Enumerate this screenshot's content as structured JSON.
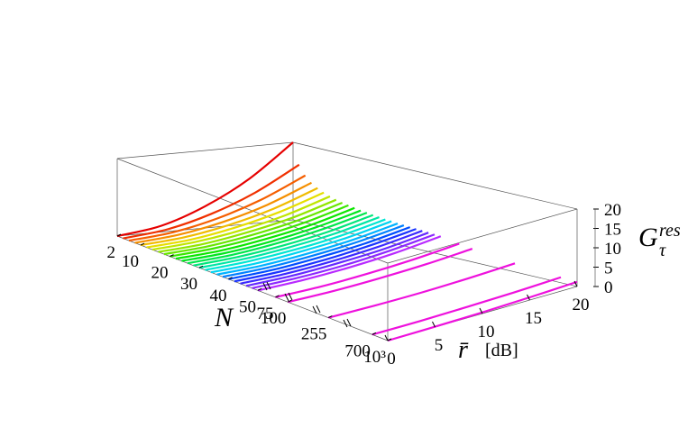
{
  "chart_data": {
    "type": "line3d",
    "x_label": "N",
    "y_label": "r̄",
    "y_unit": "[dB]",
    "z_label": "G",
    "z_sub": "τ",
    "z_sup": "res",
    "nlim": [
      2,
      1000
    ],
    "n_break": 50,
    "nticks": [
      2,
      10,
      20,
      30,
      40,
      50,
      75,
      100,
      255,
      700,
      {
        "value": 1000,
        "label": "10³"
      }
    ],
    "x": [
      0,
      5,
      10,
      15,
      20
    ],
    "xlim": [
      0,
      20
    ],
    "xticks": [
      0,
      5,
      10,
      15,
      20
    ],
    "zlim": [
      0,
      20
    ],
    "zticks": [
      0,
      5,
      10,
      15,
      20
    ],
    "series": [
      {
        "N": 2,
        "color": "hsl(0,100%,45%)",
        "values": [
          0,
          1.6,
          5.6,
          11.6,
          20
        ]
      },
      {
        "N": 4,
        "color": "hsl(12,100%,47%)",
        "values": [
          0,
          1.2,
          4.1,
          8.5,
          14.6
        ]
      },
      {
        "N": 6,
        "color": "hsl(23,100%,48%)",
        "values": [
          0,
          1.0,
          3.4,
          7.1,
          12.2
        ]
      },
      {
        "N": 8,
        "color": "hsl(35,100%,48%)",
        "values": [
          0,
          0.9,
          3.0,
          6.2,
          10.7
        ]
      },
      {
        "N": 10,
        "color": "hsl(47,100%,47%)",
        "values": [
          0,
          0.8,
          2.7,
          5.6,
          9.7
        ]
      },
      {
        "N": 12,
        "color": "hsl(58,100%,45%)",
        "values": [
          0,
          0.7,
          2.5,
          5.2,
          8.9
        ]
      },
      {
        "N": 14,
        "color": "hsl(70,100%,45%)",
        "values": [
          0,
          0.7,
          2.3,
          4.8,
          8.3
        ]
      },
      {
        "N": 16,
        "color": "hsl(82,100%,45%)",
        "values": [
          0,
          0.6,
          2.2,
          4.5,
          7.8
        ]
      },
      {
        "N": 18,
        "color": "hsl(93,100%,45%)",
        "values": [
          0,
          0.6,
          2.1,
          4.3,
          7.4
        ]
      },
      {
        "N": 20,
        "color": "hsl(105,100%,45%)",
        "values": [
          0,
          0.6,
          2.0,
          4.1,
          7.1
        ]
      },
      {
        "N": 22,
        "color": "hsl(117,100%,45%)",
        "values": [
          0,
          0.5,
          1.9,
          3.9,
          6.8
        ]
      },
      {
        "N": 24,
        "color": "hsl(128,100%,45%)",
        "values": [
          0,
          0.5,
          1.8,
          3.8,
          6.5
        ]
      },
      {
        "N": 26,
        "color": "hsl(140,100%,45%)",
        "values": [
          0,
          0.5,
          1.8,
          3.7,
          6.3
        ]
      },
      {
        "N": 28,
        "color": "hsl(152,100%,45%)",
        "values": [
          0,
          0.5,
          1.7,
          3.5,
          6.1
        ]
      },
      {
        "N": 30,
        "color": "hsl(163,100%,45%)",
        "values": [
          0,
          0.5,
          1.7,
          3.4,
          5.9
        ]
      },
      {
        "N": 32,
        "color": "hsl(175,100%,45%)",
        "values": [
          0,
          0.5,
          1.6,
          3.3,
          5.7
        ]
      },
      {
        "N": 34,
        "color": "hsl(187,100%,47%)",
        "values": [
          0,
          0.4,
          1.6,
          3.2,
          5.6
        ]
      },
      {
        "N": 36,
        "color": "hsl(198,100%,50%)",
        "values": [
          0,
          0.4,
          1.5,
          3.1,
          5.4
        ]
      },
      {
        "N": 38,
        "color": "hsl(210,100%,50%)",
        "values": [
          0,
          0.4,
          1.5,
          3.1,
          5.3
        ]
      },
      {
        "N": 40,
        "color": "hsl(222,100%,50%)",
        "values": [
          0,
          0.4,
          1.5,
          3.0,
          5.2
        ]
      },
      {
        "N": 42,
        "color": "hsl(233,100%,55%)",
        "values": [
          0,
          0.4,
          1.4,
          3.0,
          5.1
        ]
      },
      {
        "N": 44,
        "color": "hsl(245,100%,58%)",
        "values": [
          0,
          0.4,
          1.4,
          2.9,
          5.0
        ]
      },
      {
        "N": 46,
        "color": "hsl(257,100%,58%)",
        "values": [
          0,
          0.4,
          1.4,
          2.8,
          4.9
        ]
      },
      {
        "N": 48,
        "color": "hsl(268,100%,58%)",
        "values": [
          0,
          0.4,
          1.3,
          2.8,
          4.8
        ]
      },
      {
        "N": 50,
        "color": "hsl(280,100%,58%)",
        "values": [
          0,
          0.4,
          1.3,
          2.7,
          4.7
        ]
      },
      {
        "N": 75,
        "color": "#ee11dd",
        "values": [
          0,
          0.3,
          1.1,
          2.3,
          3.9
        ]
      },
      {
        "N": 100,
        "color": "#ee11dd",
        "values": [
          0,
          0.3,
          1.0,
          2.0,
          3.4
        ]
      },
      {
        "N": 255,
        "color": "#ee11dd",
        "values": [
          0,
          0.2,
          0.6,
          1.3,
          2.2
        ]
      },
      {
        "N": 700,
        "color": "#ee11dd",
        "values": [
          0,
          0.1,
          0.4,
          0.8,
          1.4
        ]
      },
      {
        "N": 1000,
        "color": "#ee11dd",
        "values": [
          0,
          0.1,
          0.3,
          0.7,
          1.2
        ]
      }
    ]
  }
}
